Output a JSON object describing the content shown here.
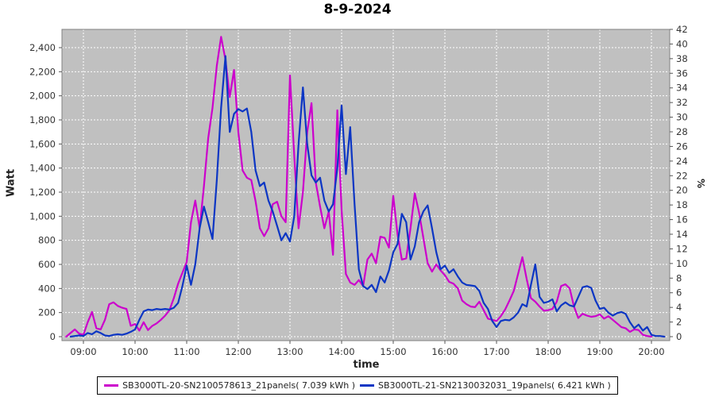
{
  "title": "8-9-2024",
  "colors": {
    "plot_background": "#c0c0c0",
    "grid": "#ffffff",
    "plot_border": "#808080",
    "tick_text": "#333333",
    "series1": "#cc00cc",
    "series2": "#0c36c4"
  },
  "chart_data": {
    "type": "line",
    "title": "8-9-2024",
    "xlabel": "time",
    "ylabel_left": "Watt",
    "ylabel_right": "%",
    "grid": "on",
    "legend_position": "bottom",
    "x_axis": {
      "label": "time",
      "ticks": [
        "09:00",
        "10:00",
        "11:00",
        "12:00",
        "13:00",
        "14:00",
        "15:00",
        "16:00",
        "17:00",
        "18:00",
        "19:00",
        "20:00"
      ]
    },
    "y_axis_left": {
      "label": "Watt",
      "tick_values": [
        0,
        200,
        400,
        600,
        800,
        1000,
        1200,
        1400,
        1600,
        1800,
        2000,
        2200,
        2400
      ],
      "tick_labels": [
        "0",
        "200",
        "400",
        "600",
        "800",
        "1,000",
        "1,200",
        "1,400",
        "1,600",
        "1,800",
        "2,000",
        "2,200",
        "2,400"
      ],
      "range": [
        0,
        2560
      ]
    },
    "y_axis_right": {
      "label": "%",
      "tick_values": [
        0,
        2,
        4,
        6,
        8,
        10,
        12,
        14,
        16,
        18,
        20,
        22,
        24,
        26,
        28,
        30,
        32,
        34,
        36,
        38,
        40,
        42
      ],
      "range": [
        0,
        42.6
      ]
    },
    "series": [
      {
        "name": "SB3000TL-20-SN2100578613_21panels( 7.039 kWh )",
        "color": "#cc00cc",
        "start_time": "08:40",
        "step_minutes": 5,
        "unit": "W",
        "values": [
          0,
          30,
          60,
          25,
          15,
          120,
          205,
          70,
          60,
          140,
          270,
          285,
          255,
          240,
          230,
          90,
          105,
          50,
          120,
          55,
          90,
          110,
          140,
          175,
          220,
          320,
          440,
          530,
          620,
          950,
          1130,
          900,
          1250,
          1650,
          1900,
          2250,
          2490,
          2300,
          1990,
          2215,
          1700,
          1380,
          1320,
          1300,
          1125,
          900,
          835,
          900,
          1100,
          1120,
          1000,
          950,
          2170,
          1500,
          900,
          1200,
          1700,
          1940,
          1280,
          1080,
          900,
          1040,
          680,
          1880,
          1050,
          520,
          450,
          430,
          470,
          420,
          640,
          690,
          610,
          830,
          820,
          740,
          1170,
          850,
          640,
          650,
          900,
          1190,
          1030,
          820,
          610,
          540,
          600,
          550,
          510,
          455,
          440,
          400,
          300,
          270,
          250,
          245,
          290,
          220,
          150,
          140,
          130,
          170,
          225,
          300,
          380,
          520,
          660,
          480,
          320,
          290,
          250,
          215,
          220,
          230,
          290,
          420,
          435,
          400,
          250,
          155,
          190,
          175,
          165,
          170,
          185,
          150,
          170,
          140,
          110,
          80,
          70,
          40,
          60,
          55,
          15,
          5,
          0
        ]
      },
      {
        "name": "SB3000TL-21-SN2130032031_19panels( 6.421 kWh )",
        "color": "#0c36c4",
        "start_time": "08:45",
        "step_minutes": 5,
        "unit": "W",
        "values": [
          0,
          5,
          10,
          5,
          30,
          20,
          45,
          30,
          10,
          5,
          15,
          20,
          15,
          25,
          40,
          60,
          140,
          210,
          225,
          220,
          230,
          225,
          230,
          225,
          240,
          280,
          420,
          590,
          430,
          600,
          900,
          1080,
          950,
          810,
          1300,
          1900,
          2330,
          1700,
          1850,
          1890,
          1870,
          1895,
          1700,
          1380,
          1250,
          1280,
          1130,
          1040,
          920,
          800,
          860,
          790,
          1000,
          1600,
          2070,
          1600,
          1340,
          1280,
          1320,
          1130,
          1040,
          1100,
          1400,
          1920,
          1350,
          1740,
          1100,
          560,
          420,
          395,
          430,
          370,
          500,
          450,
          550,
          700,
          770,
          1020,
          950,
          640,
          750,
          950,
          1040,
          1090,
          900,
          700,
          560,
          590,
          530,
          560,
          500,
          450,
          430,
          425,
          420,
          380,
          280,
          230,
          130,
          80,
          130,
          140,
          135,
          160,
          200,
          270,
          250,
          430,
          600,
          330,
          280,
          290,
          310,
          210,
          260,
          285,
          260,
          250,
          330,
          410,
          420,
          405,
          300,
          230,
          240,
          200,
          175,
          195,
          205,
          190,
          120,
          70,
          100,
          50,
          80,
          15,
          5,
          5,
          0
        ]
      }
    ]
  }
}
